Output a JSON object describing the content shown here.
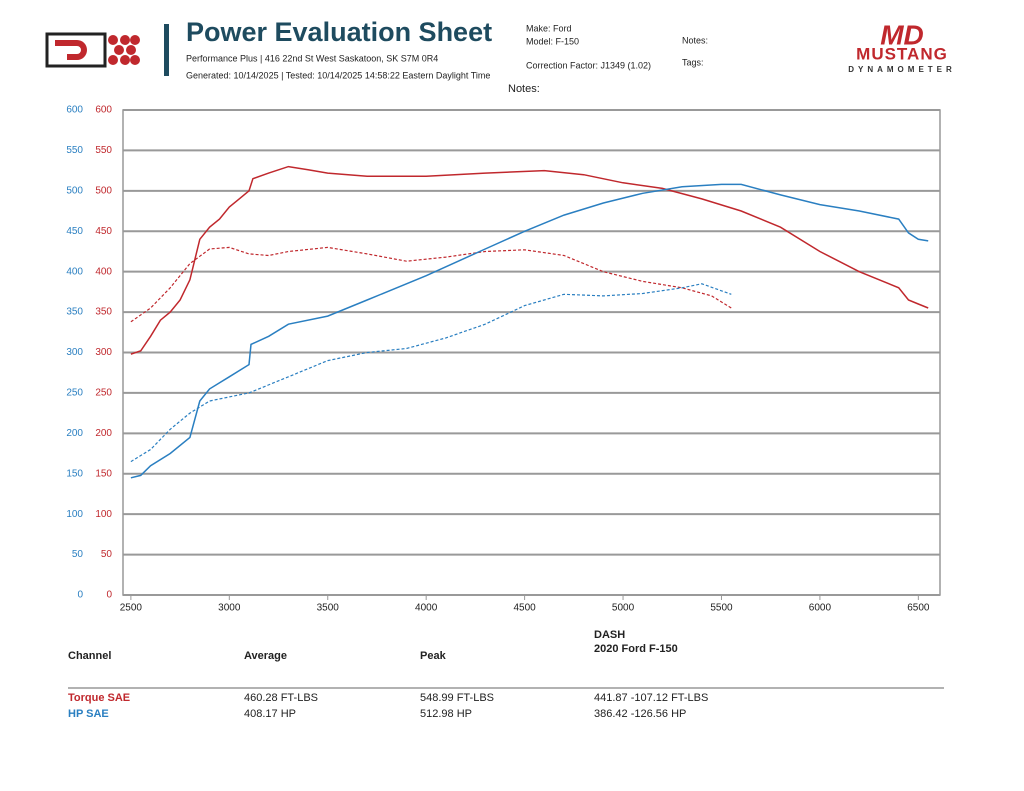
{
  "header": {
    "title": "Power Evaluation Sheet",
    "address": "Performance Plus | 416 22nd St West Saskatoon, SK S7M 0R4",
    "generated": "Generated: 10/14/2025 | Tested: 10/14/2025 14:58:22 Eastern Daylight Time",
    "make": "Make: Ford",
    "model": "Model: F-150",
    "correction": "Correction Factor: J1349 (1.02)",
    "notes": "Notes:",
    "tags": "Tags:",
    "notes2": "Notes:"
  },
  "logo": {
    "md": "MD",
    "brand": "MUSTANG",
    "sub": "DYNAMOMETER"
  },
  "chart_data": {
    "type": "line",
    "grid": true,
    "xlim": [
      2460,
      6610
    ],
    "xticks": [
      2500,
      3000,
      3500,
      4000,
      4500,
      5000,
      5500,
      6000,
      6500
    ],
    "ylim": [
      0,
      600
    ],
    "yticks": [
      0,
      50,
      100,
      150,
      200,
      250,
      300,
      350,
      400,
      450,
      500,
      550,
      600
    ],
    "ycolor": "#2a7fc1",
    "y2lim": [
      0,
      600
    ],
    "y2ticks": [
      0,
      50,
      100,
      150,
      200,
      250,
      300,
      350,
      400,
      450,
      500,
      550,
      600
    ],
    "y2color": "#c0282d",
    "series": [
      {
        "color": "#c0282d",
        "dashed": false,
        "axis": "y2",
        "x": [
          2500,
          2550,
          2600,
          2650,
          2700,
          2750,
          2800,
          2850,
          2900,
          2950,
          3000,
          3050,
          3100,
          3120,
          3200,
          3300,
          3400,
          3500,
          3700,
          4000,
          4300,
          4600,
          4800,
          5000,
          5200,
          5400,
          5600,
          5800,
          6000,
          6200,
          6400,
          6450,
          6500,
          6550
        ],
        "values": [
          298,
          302,
          320,
          340,
          350,
          365,
          390,
          440,
          455,
          465,
          480,
          490,
          500,
          515,
          522,
          530,
          526,
          522,
          518,
          518,
          522,
          525,
          520,
          510,
          503,
          490,
          475,
          455,
          425,
          400,
          380,
          365,
          360,
          355
        ]
      },
      {
        "color": "#c0282d",
        "dashed": true,
        "axis": "y2",
        "x": [
          2500,
          2600,
          2700,
          2800,
          2900,
          3000,
          3100,
          3200,
          3300,
          3500,
          3700,
          3900,
          4100,
          4300,
          4500,
          4700,
          4900,
          5100,
          5300,
          5450,
          5550
        ],
        "values": [
          338,
          355,
          380,
          410,
          428,
          430,
          422,
          420,
          425,
          430,
          422,
          413,
          418,
          425,
          427,
          420,
          400,
          388,
          380,
          370,
          355
        ]
      },
      {
        "color": "#2a7fc1",
        "dashed": false,
        "axis": "y",
        "x": [
          2500,
          2550,
          2600,
          2700,
          2800,
          2850,
          2900,
          3000,
          3100,
          3110,
          3200,
          3300,
          3500,
          3700,
          4000,
          4300,
          4500,
          4700,
          4900,
          5100,
          5300,
          5500,
          5600,
          5800,
          6000,
          6200,
          6400,
          6450,
          6500,
          6550
        ],
        "values": [
          145,
          148,
          160,
          175,
          195,
          240,
          255,
          270,
          285,
          310,
          320,
          335,
          345,
          365,
          395,
          428,
          450,
          470,
          485,
          497,
          505,
          508,
          508,
          495,
          483,
          475,
          465,
          448,
          440,
          438
        ]
      },
      {
        "color": "#2a7fc1",
        "dashed": true,
        "axis": "y",
        "x": [
          2500,
          2600,
          2700,
          2800,
          2900,
          3100,
          3300,
          3500,
          3700,
          3900,
          4100,
          4300,
          4500,
          4700,
          4900,
          5100,
          5300,
          5400,
          5550
        ],
        "values": [
          165,
          180,
          205,
          225,
          240,
          250,
          270,
          290,
          300,
          305,
          318,
          335,
          358,
          372,
          370,
          373,
          380,
          385,
          372
        ]
      }
    ]
  },
  "table": {
    "headers": [
      "Channel",
      "Average",
      "Peak"
    ],
    "dash": "DASH",
    "dash_sub": "2020 Ford F-150",
    "rows": [
      [
        "Torque SAE",
        "460.28 FT-LBS",
        "548.99 FT-LBS",
        "441.87 -107.12 FT-LBS"
      ],
      [
        "HP SAE",
        "408.17 HP",
        "512.98 HP",
        "386.42 -126.56 HP"
      ]
    ]
  }
}
